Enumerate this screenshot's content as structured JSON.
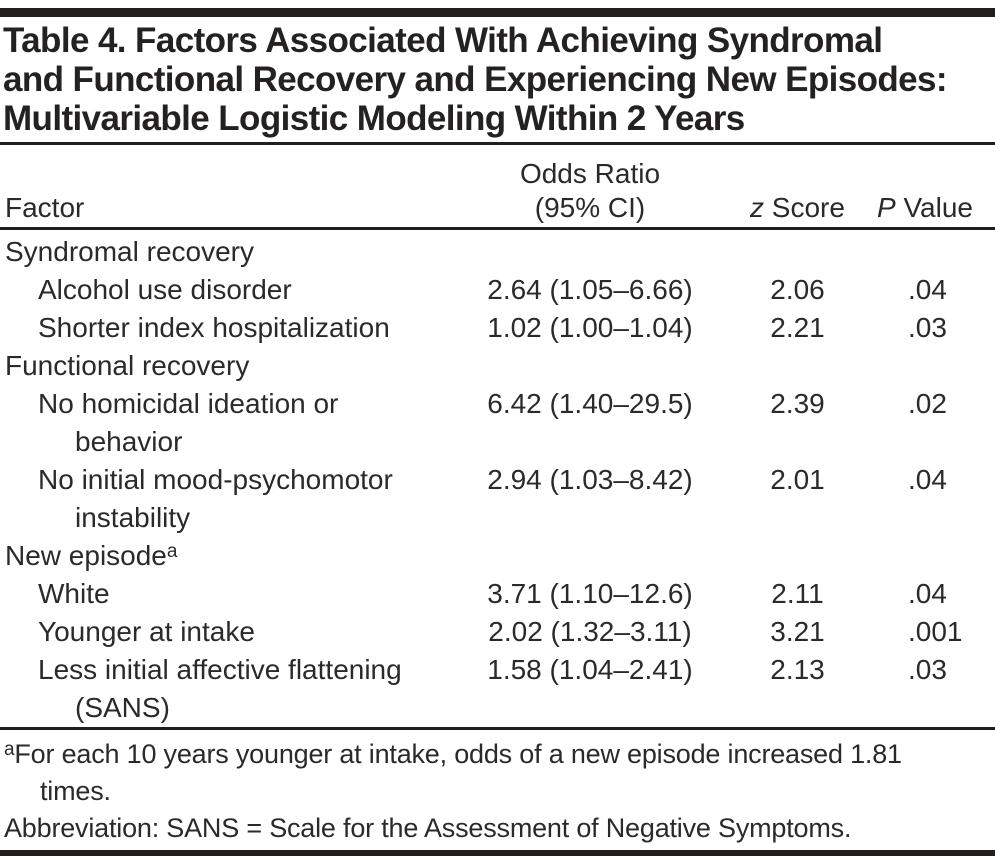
{
  "title": {
    "lines": [
      "Table 4. Factors Associated With Achieving Syndromal",
      "and Functional Recovery and Experiencing New Episodes:",
      "Multivariable Logistic Modeling Within 2 Years"
    ]
  },
  "table": {
    "columns": [
      {
        "id": "factor",
        "label": "Factor"
      },
      {
        "id": "odds_ratio",
        "line1": "Odds Ratio",
        "line2": "(95% CI)"
      },
      {
        "id": "z_score",
        "italic": "z",
        "rest": " Score"
      },
      {
        "id": "p_value",
        "italic": "P",
        "rest": " Value"
      }
    ],
    "rows": [
      {
        "type": "group",
        "label": "Syndromal recovery"
      },
      {
        "type": "item",
        "factor_lines": [
          "Alcohol use disorder"
        ],
        "odds_ratio": "2.64 (1.05–6.66)",
        "z_score": "2.06",
        "p_value": ".04"
      },
      {
        "type": "item",
        "factor_lines": [
          "Shorter index hospitalization"
        ],
        "odds_ratio": "1.02 (1.00–1.04)",
        "z_score": "2.21",
        "p_value": ".03"
      },
      {
        "type": "group",
        "label": "Functional recovery"
      },
      {
        "type": "item",
        "factor_lines": [
          "No homicidal ideation or",
          "behavior"
        ],
        "odds_ratio": "6.42 (1.40–29.5)",
        "z_score": "2.39",
        "p_value": ".02"
      },
      {
        "type": "item",
        "factor_lines": [
          "No initial mood-psychomotor",
          "instability"
        ],
        "odds_ratio": "2.94 (1.03–8.42)",
        "z_score": "2.01",
        "p_value": ".04"
      },
      {
        "type": "group",
        "label": "New episode",
        "superscript": "a"
      },
      {
        "type": "item",
        "factor_lines": [
          "White"
        ],
        "odds_ratio": "3.71 (1.10–12.6)",
        "z_score": "2.11",
        "p_value": ".04"
      },
      {
        "type": "item",
        "factor_lines": [
          "Younger at intake"
        ],
        "odds_ratio": "2.02 (1.32–3.11)",
        "z_score": "3.21",
        "p_value": ".001"
      },
      {
        "type": "item",
        "factor_lines": [
          "Less initial affective flattening",
          "(SANS)"
        ],
        "odds_ratio": "1.58 (1.04–2.41)",
        "z_score": "2.13",
        "p_value": ".03"
      }
    ]
  },
  "footnotes": [
    {
      "sup": "a",
      "lines": [
        "For each 10 years younger at intake, odds of a new episode increased 1.81",
        "times."
      ]
    },
    {
      "lines": [
        "Abbreviation: SANS = Scale for the Assessment of Negative Symptoms."
      ]
    }
  ],
  "colors": {
    "ink": "#211e1e",
    "background": "#ffffff"
  }
}
